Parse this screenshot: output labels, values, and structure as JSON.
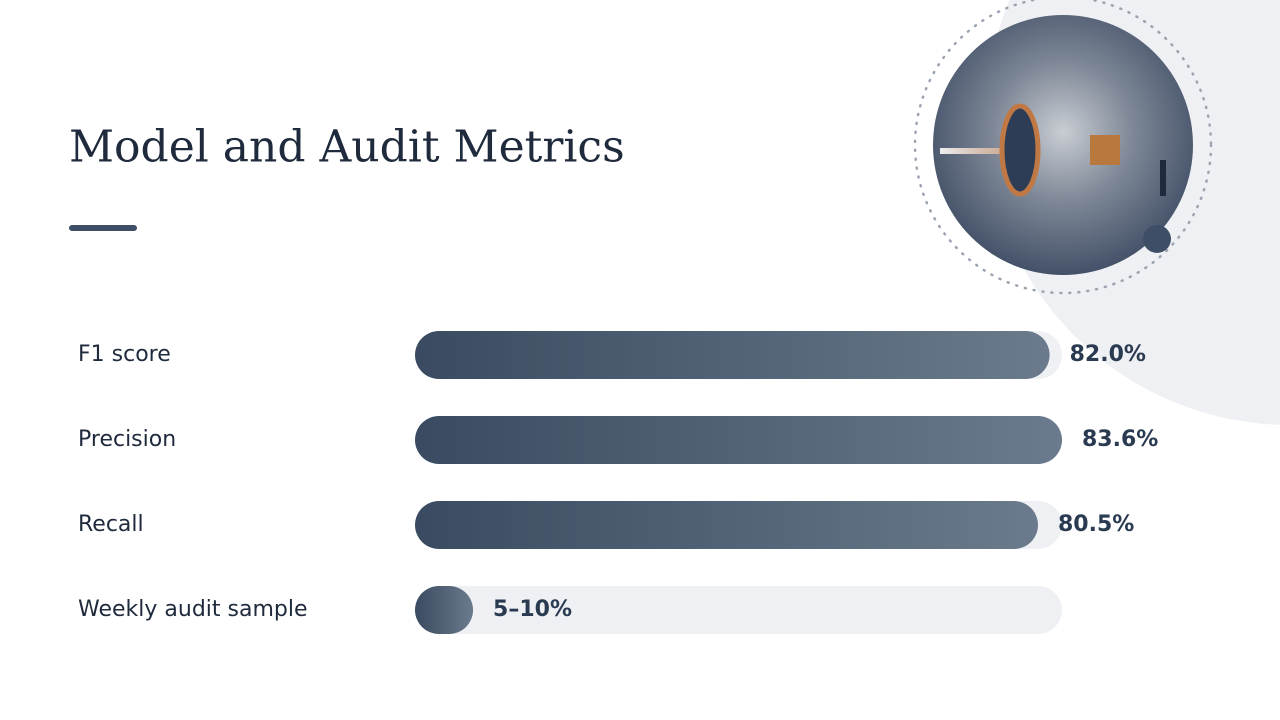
{
  "chart_data": {
    "type": "hbar",
    "title": "Model and Audit Metrics",
    "categories": [
      "F1 score",
      "Precision",
      "Recall",
      "Weekly audit sample"
    ],
    "values": [
      82.0,
      83.6,
      80.5,
      7.5
    ],
    "value_labels": [
      "82.0%",
      "83.6%",
      "80.5%",
      "5–10%"
    ],
    "xlim": [
      0,
      83.6
    ]
  }
}
